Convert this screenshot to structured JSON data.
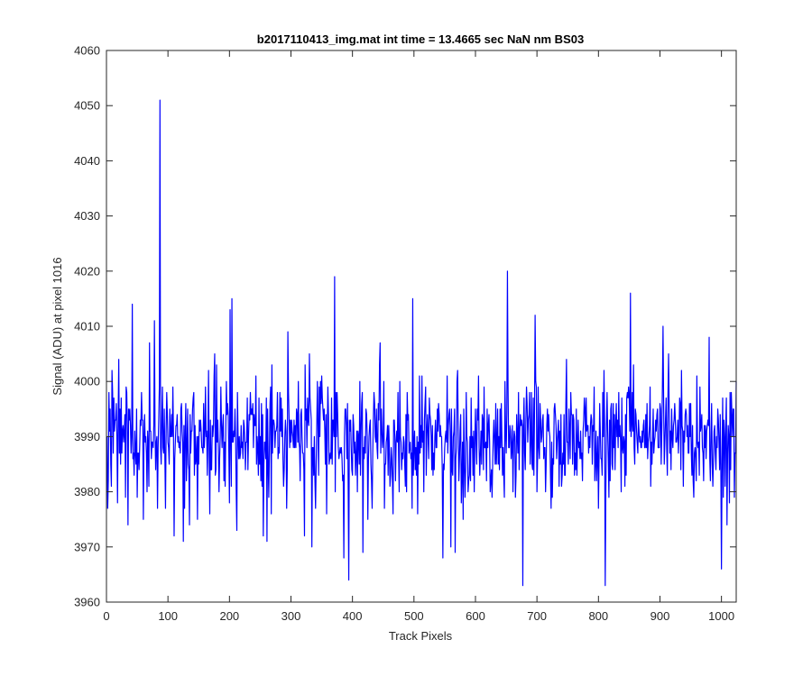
{
  "chart_data": {
    "type": "line",
    "title": "b2017110413_img.mat int time = 13.4665 sec  NaN nm BS03",
    "xlabel": "Track Pixels",
    "ylabel": "Signal (ADU) at pixel 1016",
    "xlim": [
      0,
      1024
    ],
    "ylim": [
      3960,
      4060
    ],
    "xticks": [
      0,
      100,
      200,
      300,
      400,
      500,
      600,
      700,
      800,
      900,
      1000
    ],
    "yticks": [
      3960,
      3970,
      3980,
      3990,
      4000,
      4010,
      4020,
      4030,
      4040,
      4050,
      4060
    ],
    "grid": false,
    "series": [
      {
        "color": "#0000ff",
        "mean": 3990,
        "sigma": 7,
        "points": [
          [
            1,
            3990
          ],
          [
            18,
            3978
          ],
          [
            35,
            3974
          ],
          [
            42,
            4014
          ],
          [
            50,
            3979
          ],
          [
            60,
            3975
          ],
          [
            70,
            4007
          ],
          [
            78,
            4011
          ],
          [
            83,
            3977
          ],
          [
            87,
            4051
          ],
          [
            89,
            3985
          ],
          [
            96,
            3977
          ],
          [
            110,
            3972
          ],
          [
            125,
            3971
          ],
          [
            135,
            3974
          ],
          [
            148,
            3975
          ],
          [
            168,
            3976
          ],
          [
            176,
            4005
          ],
          [
            200,
            3978
          ],
          [
            201,
            4013
          ],
          [
            204,
            4015
          ],
          [
            212,
            3973
          ],
          [
            255,
            3972
          ],
          [
            261,
            3971
          ],
          [
            295,
            4009
          ],
          [
            323,
            4003
          ],
          [
            322,
            3972
          ],
          [
            334,
            3970
          ],
          [
            350,
            4001
          ],
          [
            358,
            3976
          ],
          [
            371,
            4019
          ],
          [
            386,
            3968
          ],
          [
            394,
            3964
          ],
          [
            417,
            3969
          ],
          [
            432,
            3977
          ],
          [
            445,
            4007
          ],
          [
            466,
            3976
          ],
          [
            498,
            4015
          ],
          [
            506,
            3976
          ],
          [
            547,
            3968
          ],
          [
            560,
            3970
          ],
          [
            567,
            3969
          ],
          [
            580,
            3975
          ],
          [
            652,
            4020
          ],
          [
            677,
            3963
          ],
          [
            697,
            4012
          ],
          [
            723,
            3977
          ],
          [
            800,
            3977
          ],
          [
            811,
            3963
          ],
          [
            852,
            4016
          ],
          [
            905,
            4010
          ],
          [
            980,
            4008
          ],
          [
            1000,
            3966
          ],
          [
            1013,
            3978
          ],
          [
            1021,
            3979
          ],
          [
            1024,
            4000
          ]
        ]
      }
    ]
  }
}
